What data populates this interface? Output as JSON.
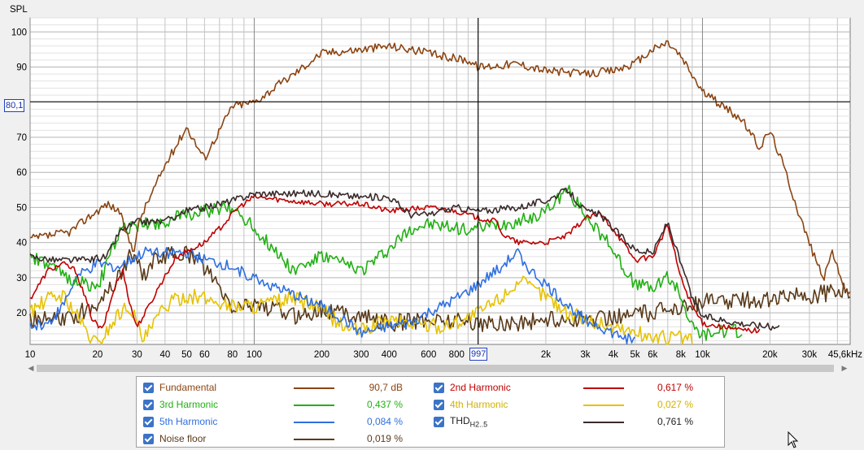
{
  "chart_data": {
    "type": "line",
    "ylabel": "SPL",
    "xscale": "log",
    "xlim": [
      10,
      45600
    ],
    "ylim": [
      11,
      104
    ],
    "grid": true,
    "y_ticks": [
      "100",
      "90",
      "70",
      "60",
      "50",
      "40",
      "30",
      "20"
    ],
    "y_tick_values": [
      100,
      90,
      70,
      60,
      50,
      40,
      30,
      20
    ],
    "x_ticks": [
      {
        "v": 10,
        "label": "10"
      },
      {
        "v": 20,
        "label": "20"
      },
      {
        "v": 30,
        "label": "30"
      },
      {
        "v": 40,
        "label": "40"
      },
      {
        "v": 50,
        "label": "50"
      },
      {
        "v": 60,
        "label": "60"
      },
      {
        "v": 80,
        "label": "80"
      },
      {
        "v": 100,
        "label": "100"
      },
      {
        "v": 200,
        "label": "200"
      },
      {
        "v": 300,
        "label": "300"
      },
      {
        "v": 400,
        "label": "400"
      },
      {
        "v": 600,
        "label": "600"
      },
      {
        "v": 800,
        "label": "800"
      },
      {
        "v": 2000,
        "label": "2k"
      },
      {
        "v": 3000,
        "label": "3k"
      },
      {
        "v": 4000,
        "label": "4k"
      },
      {
        "v": 5000,
        "label": "5k"
      },
      {
        "v": 6000,
        "label": "6k"
      },
      {
        "v": 8000,
        "label": "8k"
      },
      {
        "v": 10000,
        "label": "10k"
      },
      {
        "v": 20000,
        "label": "20k"
      },
      {
        "v": 30000,
        "label": "30k"
      },
      {
        "v": 45600,
        "label": "45,6kHz"
      }
    ],
    "cursor": {
      "x": 997,
      "y": 80.1,
      "x_label": "997",
      "y_label": "80,1"
    },
    "series": [
      {
        "name": "Fundamental",
        "color": "#8b4513",
        "value": "90,7 dB",
        "ripple": 1.2,
        "points": [
          [
            10,
            41
          ],
          [
            15,
            43
          ],
          [
            18,
            47
          ],
          [
            22,
            51
          ],
          [
            25,
            49
          ],
          [
            27,
            42
          ],
          [
            29,
            38
          ],
          [
            31,
            47
          ],
          [
            40,
            62
          ],
          [
            50,
            73
          ],
          [
            55,
            68
          ],
          [
            60,
            64
          ],
          [
            70,
            72
          ],
          [
            80,
            79
          ],
          [
            100,
            80
          ],
          [
            150,
            88
          ],
          [
            200,
            94
          ],
          [
            300,
            95
          ],
          [
            400,
            96
          ],
          [
            500,
            95
          ],
          [
            700,
            93
          ],
          [
            900,
            92
          ],
          [
            1000,
            90
          ],
          [
            1500,
            91
          ],
          [
            2000,
            89
          ],
          [
            3000,
            88
          ],
          [
            4000,
            89
          ],
          [
            5000,
            91
          ],
          [
            6000,
            95
          ],
          [
            7000,
            97
          ],
          [
            8000,
            93
          ],
          [
            10000,
            83
          ],
          [
            15000,
            75
          ],
          [
            18000,
            67
          ],
          [
            20000,
            72
          ],
          [
            23000,
            62
          ],
          [
            27000,
            48
          ],
          [
            32000,
            35
          ],
          [
            35000,
            30
          ],
          [
            38000,
            38
          ],
          [
            41000,
            30
          ],
          [
            45600,
            25
          ]
        ]
      },
      {
        "name": "2nd Harmonic",
        "color": "#c00000",
        "value": "0,617 %",
        "ripple": 0.8,
        "points": [
          [
            10,
            24
          ],
          [
            12,
            32
          ],
          [
            14,
            34
          ],
          [
            16,
            32
          ],
          [
            19,
            18
          ],
          [
            21,
            15
          ],
          [
            24,
            28
          ],
          [
            26,
            32
          ],
          [
            28,
            22
          ],
          [
            30,
            16
          ],
          [
            34,
            22
          ],
          [
            38,
            28
          ],
          [
            45,
            36
          ],
          [
            60,
            40
          ],
          [
            70,
            44
          ],
          [
            85,
            50
          ],
          [
            100,
            53
          ],
          [
            200,
            51
          ],
          [
            300,
            51
          ],
          [
            400,
            49
          ],
          [
            600,
            50
          ],
          [
            800,
            49
          ],
          [
            1000,
            47
          ],
          [
            1200,
            46
          ],
          [
            1300,
            42
          ],
          [
            1500,
            40
          ],
          [
            2000,
            40
          ],
          [
            2500,
            42
          ],
          [
            3000,
            47
          ],
          [
            3500,
            48
          ],
          [
            4000,
            44
          ],
          [
            5000,
            35
          ],
          [
            6000,
            36
          ],
          [
            7000,
            45
          ],
          [
            8000,
            30
          ],
          [
            9000,
            22
          ],
          [
            10000,
            17
          ],
          [
            15000,
            15
          ],
          [
            18000,
            15
          ]
        ]
      },
      {
        "name": "3rd Harmonic",
        "color": "#22b014",
        "value": "0,437 %",
        "ripple": 2.0,
        "points": [
          [
            10,
            36
          ],
          [
            15,
            30
          ],
          [
            20,
            27
          ],
          [
            25,
            43
          ],
          [
            30,
            45
          ],
          [
            40,
            46
          ],
          [
            50,
            48
          ],
          [
            60,
            49
          ],
          [
            80,
            50
          ],
          [
            90,
            47
          ],
          [
            100,
            44
          ],
          [
            150,
            32
          ],
          [
            200,
            36
          ],
          [
            300,
            32
          ],
          [
            400,
            38
          ],
          [
            500,
            44
          ],
          [
            600,
            45
          ],
          [
            800,
            44
          ],
          [
            1000,
            44
          ],
          [
            1500,
            46
          ],
          [
            2000,
            49
          ],
          [
            2500,
            55
          ],
          [
            3000,
            48
          ],
          [
            4000,
            38
          ],
          [
            5000,
            28
          ],
          [
            6000,
            27
          ],
          [
            7000,
            30
          ],
          [
            8000,
            25
          ],
          [
            9000,
            16
          ],
          [
            10000,
            14
          ],
          [
            15000,
            15
          ]
        ]
      },
      {
        "name": "4th Harmonic",
        "color": "#e6c200",
        "value": "0,027 %",
        "ripple": 2.2,
        "points": [
          [
            10,
            20
          ],
          [
            12,
            24
          ],
          [
            14,
            25
          ],
          [
            16,
            20
          ],
          [
            18,
            14
          ],
          [
            20,
            11
          ],
          [
            25,
            20
          ],
          [
            28,
            22
          ],
          [
            32,
            12
          ],
          [
            40,
            22
          ],
          [
            50,
            25
          ],
          [
            60,
            24
          ],
          [
            80,
            22
          ],
          [
            100,
            22
          ],
          [
            150,
            24
          ],
          [
            200,
            21
          ],
          [
            250,
            16
          ],
          [
            300,
            15
          ],
          [
            400,
            18
          ],
          [
            500,
            17
          ],
          [
            700,
            16
          ],
          [
            1000,
            20
          ],
          [
            1300,
            25
          ],
          [
            1500,
            29
          ],
          [
            2000,
            25
          ],
          [
            2500,
            20
          ],
          [
            3000,
            18
          ],
          [
            4000,
            16
          ],
          [
            6000,
            13
          ],
          [
            8000,
            13
          ],
          [
            9000,
            12
          ]
        ]
      },
      {
        "name": "5th Harmonic",
        "color": "#2f6fe0",
        "value": "0,084 %",
        "ripple": 1.6,
        "points": [
          [
            10,
            16
          ],
          [
            12,
            17
          ],
          [
            14,
            22
          ],
          [
            16,
            30
          ],
          [
            20,
            34
          ],
          [
            25,
            33
          ],
          [
            30,
            36
          ],
          [
            35,
            38
          ],
          [
            40,
            37
          ],
          [
            50,
            37
          ],
          [
            60,
            35
          ],
          [
            80,
            33
          ],
          [
            100,
            30
          ],
          [
            150,
            25
          ],
          [
            200,
            22
          ],
          [
            250,
            18
          ],
          [
            300,
            14
          ],
          [
            400,
            16
          ],
          [
            500,
            17
          ],
          [
            600,
            20
          ],
          [
            700,
            22
          ],
          [
            800,
            24
          ],
          [
            900,
            26
          ],
          [
            1000,
            28
          ],
          [
            1200,
            32
          ],
          [
            1500,
            37
          ],
          [
            1700,
            32
          ],
          [
            2000,
            28
          ],
          [
            2500,
            22
          ],
          [
            3000,
            18
          ],
          [
            3500,
            16
          ],
          [
            4000,
            14
          ],
          [
            5000,
            12
          ]
        ]
      },
      {
        "name": "THD H2..5",
        "color": "#3a2a2a",
        "value": "0,761 %",
        "ripple": 1.0,
        "points": [
          [
            10,
            36
          ],
          [
            13,
            35
          ],
          [
            18,
            35
          ],
          [
            22,
            36
          ],
          [
            25,
            43
          ],
          [
            30,
            46
          ],
          [
            40,
            46
          ],
          [
            50,
            49
          ],
          [
            60,
            50
          ],
          [
            80,
            52
          ],
          [
            100,
            54
          ],
          [
            200,
            54
          ],
          [
            300,
            53
          ],
          [
            400,
            53
          ],
          [
            500,
            48
          ],
          [
            600,
            48
          ],
          [
            800,
            50
          ],
          [
            1000,
            49
          ],
          [
            1500,
            50
          ],
          [
            2000,
            52
          ],
          [
            2500,
            55
          ],
          [
            3000,
            49
          ],
          [
            3500,
            48
          ],
          [
            4000,
            44
          ],
          [
            5000,
            38
          ],
          [
            6000,
            37
          ],
          [
            7000,
            46
          ],
          [
            8000,
            34
          ],
          [
            9000,
            24
          ],
          [
            10000,
            19
          ],
          [
            15000,
            17
          ],
          [
            20000,
            16
          ],
          [
            22000,
            16
          ]
        ]
      },
      {
        "name": "Noise floor",
        "color": "#5a3b1a",
        "value": "0,019 %",
        "ripple": 2.5,
        "points": [
          [
            10,
            18
          ],
          [
            15,
            18
          ],
          [
            20,
            23
          ],
          [
            25,
            30
          ],
          [
            28,
            37
          ],
          [
            32,
            31
          ],
          [
            38,
            36
          ],
          [
            50,
            37
          ],
          [
            60,
            33
          ],
          [
            80,
            21
          ],
          [
            100,
            23
          ],
          [
            150,
            19
          ],
          [
            200,
            21
          ],
          [
            300,
            19
          ],
          [
            400,
            17
          ],
          [
            600,
            18
          ],
          [
            800,
            18
          ],
          [
            1000,
            17
          ],
          [
            1500,
            17
          ],
          [
            2000,
            18
          ],
          [
            3000,
            18
          ],
          [
            4000,
            19
          ],
          [
            6000,
            20
          ],
          [
            8000,
            22
          ],
          [
            10000,
            23
          ],
          [
            20000,
            24
          ],
          [
            30000,
            25
          ],
          [
            40000,
            26
          ],
          [
            45600,
            26
          ]
        ]
      }
    ]
  },
  "legend": {
    "items": [
      {
        "label": "Fundamental",
        "value": "90,7 dB",
        "color": "#8b4513",
        "text_color": "#8b4513"
      },
      {
        "label": "2nd Harmonic",
        "value": "0,617 %",
        "color": "#c00000",
        "text_color": "#c00000"
      },
      {
        "label": "3rd Harmonic",
        "value": "0,437 %",
        "color": "#22b014",
        "text_color": "#22b014"
      },
      {
        "label": "4th Harmonic",
        "value": "0,027 %",
        "color": "#e6c200",
        "text_color": "#d4b000"
      },
      {
        "label": "5th Harmonic",
        "value": "0,084 %",
        "color": "#2f6fe0",
        "text_color": "#2f6fe0"
      },
      {
        "label": "THD",
        "label_sub": "H2..5",
        "value": "0,761 %",
        "color": "#3a2a2a",
        "text_color": "#222222"
      },
      {
        "label": "Noise floor",
        "value": "0,019 %",
        "color": "#5a3b1a",
        "text_color": "#5a3b1a"
      }
    ]
  }
}
